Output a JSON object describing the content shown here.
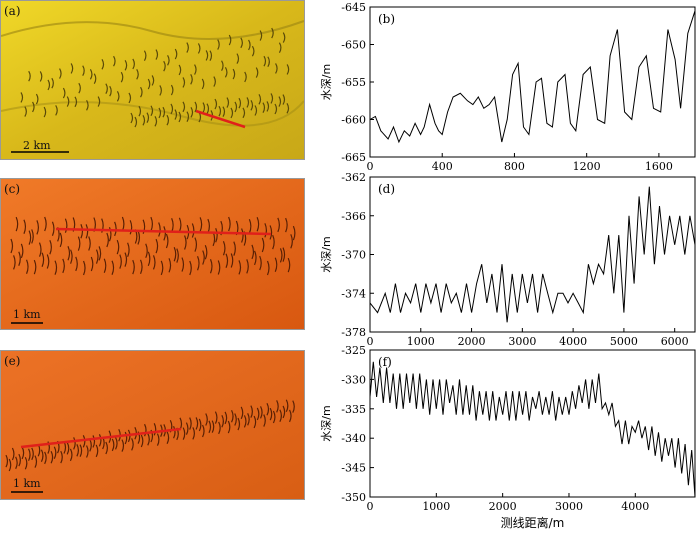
{
  "panels": {
    "a": {
      "label": "(a)",
      "scale": "2 km",
      "theme": "#d9c21f"
    },
    "c": {
      "label": "(c)",
      "scale": "1 km",
      "theme": "#e3641a"
    },
    "e": {
      "label": "(e)",
      "scale": "1 km",
      "theme": "#e2671c"
    }
  },
  "chart_data": [
    {
      "type": "line",
      "panel_label": "(b)",
      "ylabel": "水深/m",
      "xlim": [
        0,
        1800
      ],
      "ylim": [
        -665,
        -645
      ],
      "xticks": [
        0,
        400,
        800,
        1200,
        1600
      ],
      "yticks": [
        -645,
        -650,
        -655,
        -660,
        -665
      ],
      "x": [
        0,
        30,
        60,
        100,
        130,
        160,
        190,
        220,
        250,
        280,
        300,
        330,
        360,
        380,
        400,
        430,
        460,
        500,
        540,
        570,
        600,
        630,
        660,
        690,
        730,
        760,
        790,
        820,
        850,
        880,
        920,
        950,
        980,
        1010,
        1040,
        1080,
        1110,
        1140,
        1180,
        1220,
        1260,
        1300,
        1330,
        1370,
        1410,
        1450,
        1490,
        1530,
        1570,
        1610,
        1650,
        1690,
        1720,
        1760,
        1800
      ],
      "values": [
        -660,
        -659.6,
        -661.5,
        -662.6,
        -661,
        -663,
        -661.5,
        -662.2,
        -660.5,
        -662,
        -661,
        -658,
        -660.5,
        -661.5,
        -662,
        -659,
        -657,
        -656.5,
        -657.5,
        -658,
        -657,
        -658.5,
        -658,
        -657,
        -663,
        -660,
        -654,
        -652.5,
        -661,
        -662,
        -655,
        -654.5,
        -660.5,
        -661,
        -655,
        -654,
        -660.5,
        -661.5,
        -654,
        -653,
        -660,
        -660.5,
        -651.5,
        -648,
        -659,
        -660,
        -653,
        -651.5,
        -658.5,
        -659,
        -648,
        -652,
        -658.5,
        -648.5,
        -645.5
      ]
    },
    {
      "type": "line",
      "panel_label": "(d)",
      "ylabel": "水深/m",
      "xlim": [
        0,
        6400
      ],
      "ylim": [
        -378,
        -362
      ],
      "xticks": [
        0,
        1000,
        2000,
        3000,
        4000,
        5000,
        6000
      ],
      "yticks": [
        -362,
        -366,
        -370,
        -374,
        -378
      ],
      "x": [
        0,
        150,
        300,
        400,
        500,
        600,
        700,
        800,
        900,
        1000,
        1100,
        1200,
        1300,
        1400,
        1500,
        1600,
        1700,
        1800,
        1900,
        2000,
        2100,
        2200,
        2300,
        2400,
        2500,
        2600,
        2700,
        2800,
        2900,
        3000,
        3100,
        3200,
        3300,
        3400,
        3500,
        3600,
        3700,
        3800,
        3900,
        4000,
        4100,
        4200,
        4300,
        4400,
        4500,
        4600,
        4700,
        4800,
        4900,
        5000,
        5100,
        5200,
        5300,
        5400,
        5500,
        5600,
        5700,
        5800,
        5900,
        6000,
        6100,
        6200,
        6300,
        6400
      ],
      "values": [
        -375,
        -376,
        -374,
        -376,
        -373,
        -376,
        -374,
        -375,
        -373,
        -376,
        -373,
        -375,
        -373,
        -376,
        -373,
        -375,
        -374,
        -376,
        -373,
        -376,
        -373,
        -371,
        -375,
        -372,
        -376,
        -371,
        -377,
        -372,
        -376,
        -372,
        -375,
        -372,
        -376,
        -372,
        -374,
        -376,
        -374,
        -374,
        -375,
        -374,
        -375,
        -376,
        -371,
        -373,
        -371,
        -372,
        -368,
        -374,
        -368,
        -376,
        -366,
        -373,
        -364,
        -370,
        -363,
        -371,
        -365,
        -370,
        -366,
        -369,
        -366,
        -370,
        -366,
        -369
      ]
    },
    {
      "type": "line",
      "panel_label": "(f)",
      "xlabel": "测线距离/m",
      "ylabel": "水深/m",
      "xlim": [
        0,
        4900
      ],
      "ylim": [
        -350,
        -325
      ],
      "xticks": [
        0,
        1000,
        2000,
        3000,
        4000
      ],
      "yticks": [
        -325,
        -330,
        -335,
        -340,
        -345,
        -350
      ],
      "x": [
        0,
        50,
        100,
        150,
        200,
        250,
        300,
        350,
        400,
        450,
        500,
        550,
        600,
        650,
        700,
        750,
        800,
        850,
        900,
        950,
        1000,
        1050,
        1100,
        1150,
        1200,
        1250,
        1300,
        1350,
        1400,
        1450,
        1500,
        1550,
        1600,
        1650,
        1700,
        1750,
        1800,
        1850,
        1900,
        1950,
        2000,
        2050,
        2100,
        2150,
        2200,
        2250,
        2300,
        2350,
        2400,
        2450,
        2500,
        2550,
        2600,
        2650,
        2700,
        2750,
        2800,
        2850,
        2900,
        2950,
        3000,
        3050,
        3100,
        3150,
        3200,
        3250,
        3300,
        3350,
        3400,
        3450,
        3500,
        3550,
        3600,
        3650,
        3700,
        3750,
        3800,
        3850,
        3900,
        3950,
        4000,
        4050,
        4100,
        4150,
        4200,
        4250,
        4300,
        4350,
        4400,
        4450,
        4500,
        4550,
        4600,
        4650,
        4700,
        4750,
        4800,
        4850,
        4900
      ],
      "values": [
        -333,
        -327,
        -333,
        -328,
        -334,
        -328,
        -334,
        -329,
        -335,
        -329,
        -335,
        -329,
        -334,
        -329,
        -335,
        -329,
        -335,
        -330,
        -336,
        -330,
        -335,
        -330,
        -336,
        -330,
        -334,
        -331,
        -336,
        -330,
        -336,
        -331,
        -336,
        -331,
        -337,
        -332,
        -336,
        -332,
        -337,
        -332,
        -337,
        -333,
        -336,
        -332,
        -337,
        -332,
        -337,
        -332,
        -336,
        -332,
        -337,
        -333,
        -335,
        -332,
        -336,
        -333,
        -336,
        -332,
        -337,
        -333,
        -336,
        -333,
        -336,
        -332,
        -335,
        -331,
        -334,
        -330,
        -335,
        -330,
        -334,
        -329,
        -335,
        -334,
        -336,
        -334,
        -338,
        -337,
        -341,
        -337,
        -341,
        -338,
        -339,
        -337,
        -340,
        -338,
        -342,
        -338,
        -343,
        -339,
        -344,
        -340,
        -343,
        -340,
        -345,
        -340,
        -346,
        -341,
        -348,
        -342,
        -350
      ]
    }
  ]
}
